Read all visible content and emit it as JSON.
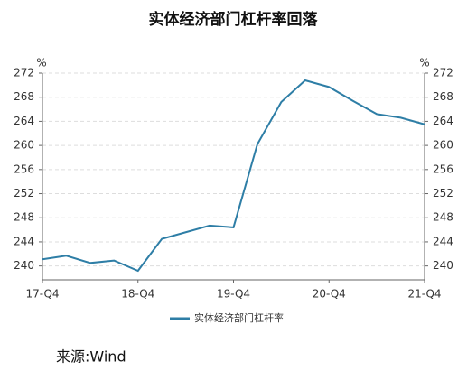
{
  "chart_data": {
    "type": "line",
    "title": "实体经济部门杠杆率回落",
    "y_unit": "%",
    "y2_unit": "%",
    "categories": [
      "17-Q4",
      null,
      null,
      null,
      "18-Q4",
      null,
      null,
      null,
      "19-Q4",
      null,
      null,
      null,
      "20-Q4",
      null,
      null,
      null,
      "21-Q4"
    ],
    "series": [
      {
        "name": "实体经济部门杠杆率",
        "color": "#2e7ea6",
        "values": [
          241.1,
          241.7,
          240.5,
          240.9,
          239.2,
          244.5,
          245.6,
          246.7,
          246.4,
          260.2,
          267.2,
          270.8,
          269.7,
          267.4,
          265.2,
          264.6,
          263.5
        ]
      }
    ],
    "ylim": [
      237.7,
      272
    ],
    "yticks": [
      240,
      244,
      248,
      252,
      256,
      260,
      264,
      268,
      272
    ],
    "grid": true,
    "legend": "bottom",
    "source": "来源:Wind"
  }
}
